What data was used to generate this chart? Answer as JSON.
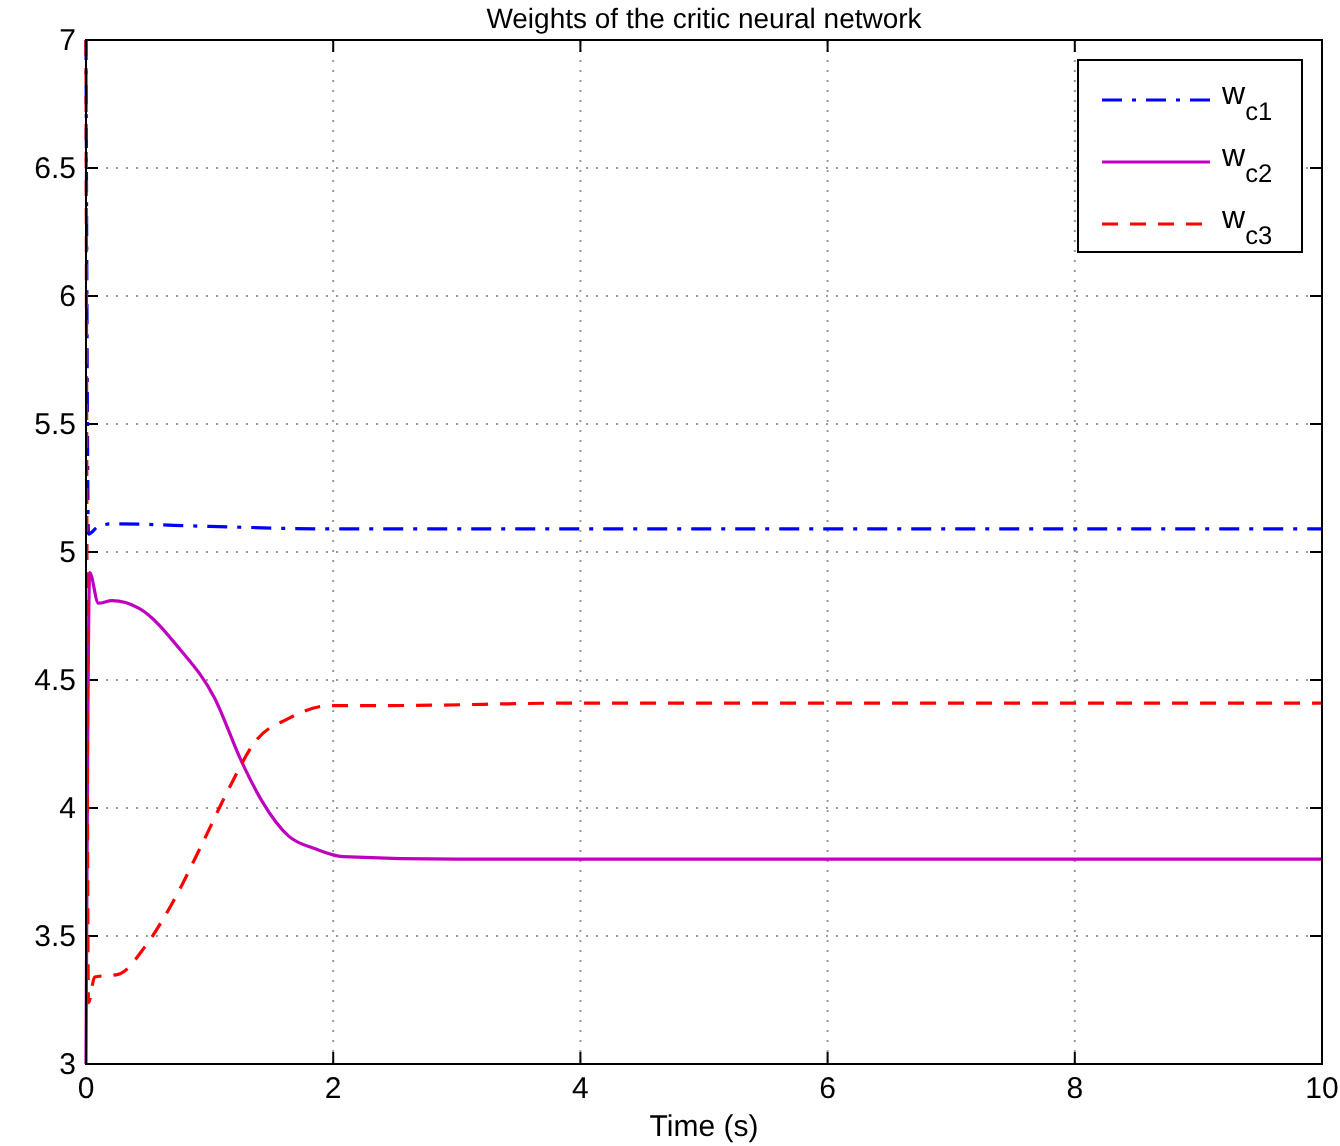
{
  "chart_data": {
    "type": "line",
    "title": "Weights of the critic neural network",
    "xlabel": "Time (s)",
    "xlim": [
      0,
      10
    ],
    "ylim": [
      3,
      7
    ],
    "xticks": [
      0,
      2,
      4,
      6,
      8,
      10
    ],
    "yticks": [
      3,
      3.5,
      4,
      4.5,
      5,
      5.5,
      6,
      6.5,
      7
    ],
    "grid": true,
    "legend": "top right",
    "series": [
      {
        "name": "w$_{c1}$",
        "color": "#0000ff",
        "line_style": "dashdot",
        "x": [
          0,
          0.02,
          0.1,
          0.21,
          1,
          2,
          4,
          6,
          8,
          10
        ],
        "values": [
          7,
          5.07,
          5.1,
          5.11,
          5.1,
          5.09,
          5.09,
          5.09,
          5.09,
          5.09
        ]
      },
      {
        "name": "w$_{c2}$",
        "color": "#bf00bf",
        "line_style": "solid",
        "x": [
          0,
          0.03,
          0.1,
          0.21,
          0.43,
          0.76,
          1.04,
          1.26,
          1.42,
          1.64,
          1.86,
          2.08,
          3,
          4,
          6,
          8,
          10
        ],
        "values": [
          3,
          4.92,
          4.8,
          4.81,
          4.78,
          4.62,
          4.43,
          4.18,
          4.03,
          3.89,
          3.84,
          3.81,
          3.8,
          3.8,
          3.8,
          3.8,
          3.8
        ]
      },
      {
        "name": "w$_{c3}$",
        "color": "#ff0000",
        "line_style": "dashed",
        "x": [
          0,
          0.02,
          0.07,
          0.26,
          0.48,
          0.7,
          0.93,
          1.15,
          1.37,
          1.64,
          1.97,
          2.41,
          4,
          6,
          8,
          10
        ],
        "values": [
          7,
          3.24,
          3.34,
          3.35,
          3.46,
          3.63,
          3.85,
          4.07,
          4.26,
          4.35,
          4.4,
          4.4,
          4.41,
          4.41,
          4.41,
          4.41
        ]
      }
    ]
  }
}
